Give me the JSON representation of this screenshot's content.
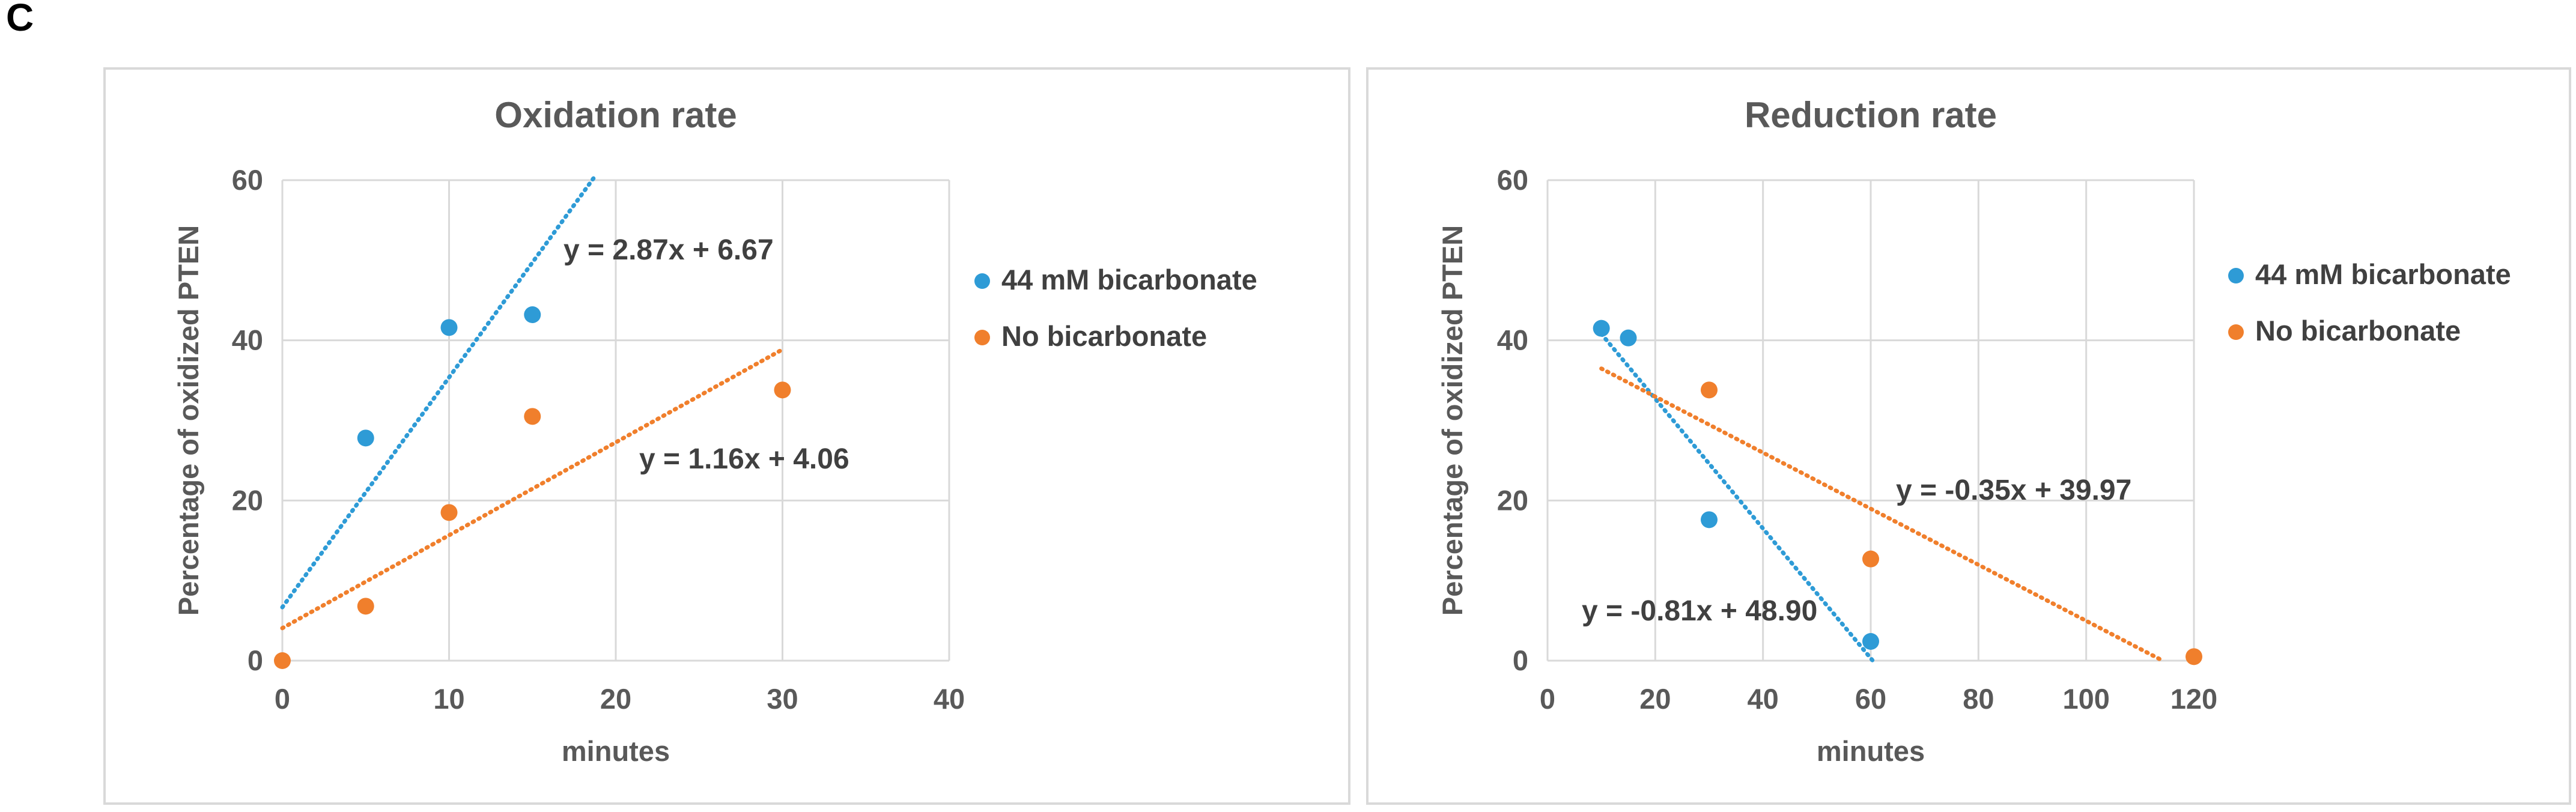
{
  "panel_label": "C",
  "colors": {
    "series1": "#2e9bd6",
    "series2": "#f07f2c",
    "grid": "#d9d9d9",
    "text": "#595959"
  },
  "chart_data": [
    {
      "id": "oxidation",
      "type": "scatter",
      "title": "Oxidation rate",
      "xlabel": "minutes",
      "ylabel": "Percentage of oxidized PTEN",
      "xlim": [
        0,
        40
      ],
      "ylim": [
        0,
        60
      ],
      "xticks": [
        0,
        10,
        20,
        30,
        40
      ],
      "yticks": [
        0,
        20,
        40,
        60
      ],
      "grid": true,
      "legend_position": "right",
      "series": [
        {
          "name": "44 mM bicarbonate",
          "color": "#2e9bd6",
          "x": [
            5,
            10,
            15
          ],
          "y": [
            27.8,
            41.6,
            43.2
          ],
          "trendline": {
            "slope": 2.87,
            "intercept": 6.67,
            "x_range": [
              0,
              18.8
            ],
            "label": "y = 2.87x + 6.67"
          }
        },
        {
          "name": "No bicarbonate",
          "color": "#f07f2c",
          "x": [
            0,
            5,
            10,
            15,
            30
          ],
          "y": [
            0,
            6.8,
            18.5,
            30.5,
            33.8
          ],
          "trendline": {
            "slope": 1.16,
            "intercept": 4.06,
            "x_range": [
              0,
              30
            ],
            "label": "y = 1.16x + 4.06"
          }
        }
      ]
    },
    {
      "id": "reduction",
      "type": "scatter",
      "title": "Reduction rate",
      "xlabel": "minutes",
      "ylabel": "Percentage of oxidized PTEN",
      "xlim": [
        0,
        120
      ],
      "ylim": [
        0,
        60
      ],
      "xticks": [
        0,
        20,
        40,
        60,
        80,
        100,
        120
      ],
      "yticks": [
        0,
        20,
        40,
        60
      ],
      "grid": true,
      "legend_position": "right",
      "series": [
        {
          "name": "44 mM bicarbonate",
          "color": "#2e9bd6",
          "x": [
            10,
            15,
            30,
            60
          ],
          "y": [
            41.5,
            40.3,
            17.6,
            2.4
          ],
          "trendline": {
            "slope": -0.81,
            "intercept": 48.9,
            "x_range": [
              10,
              60.4
            ],
            "label": "y = -0.81x + 48.90"
          }
        },
        {
          "name": "No bicarbonate",
          "color": "#f07f2c",
          "x": [
            30,
            60,
            120
          ],
          "y": [
            33.8,
            12.7,
            0.5
          ],
          "trendline": {
            "slope": -0.35,
            "intercept": 39.97,
            "x_range": [
              10,
              114.2
            ],
            "label": "y = -0.35x + 39.97"
          }
        }
      ]
    }
  ]
}
